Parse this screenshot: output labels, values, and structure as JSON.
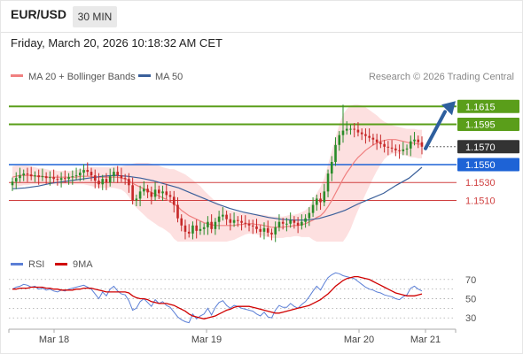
{
  "header": {
    "symbol": "EUR/USD",
    "timeframe": "30 MIN",
    "datetime": "Friday, March 20, 2026 10:18:32 AM CET"
  },
  "legend": {
    "ma20": "MA 20 + Bollinger Bands",
    "ma50": "MA 50",
    "credit": "Research © 2026 Trading Central",
    "rsi": "RSI",
    "rsi_ma": "9MA"
  },
  "colors": {
    "up": "#2a8c2a",
    "down": "#c62828",
    "ma20": "#f08080",
    "ma50": "#3a5f9a",
    "bollinger_fill": "#fde0e0",
    "resistance": "#5a9e1a",
    "current": "#333333",
    "support_blue": "#1e63d6",
    "support_red": "#d04040",
    "arrow": "#2e5f9e",
    "rsi": "#5b7fd6",
    "rsi_ma": "#d00000"
  },
  "chart_data": [
    {
      "type": "candlestick",
      "symbol": "EUR/USD",
      "interval": "30 MIN",
      "ylim": [
        1.1462,
        1.164
      ],
      "x_ticks": [
        "Mar 18",
        "Mar 19",
        "Mar 20",
        "Mar 21"
      ],
      "levels": [
        {
          "value": 1.1615,
          "label": "1.1615",
          "kind": "resistance"
        },
        {
          "value": 1.1595,
          "label": "1.1595",
          "kind": "resistance"
        },
        {
          "value": 1.157,
          "label": "1.1570",
          "kind": "current"
        },
        {
          "value": 1.155,
          "label": "1.1550",
          "kind": "pivot"
        },
        {
          "value": 1.153,
          "label": "1.1530",
          "kind": "support"
        },
        {
          "value": 1.151,
          "label": "1.1510",
          "kind": "support"
        }
      ],
      "close": [
        1.1531,
        1.1535,
        1.1538,
        1.154,
        1.1539,
        1.1537,
        1.1538,
        1.1536,
        1.1537,
        1.1535,
        1.1536,
        1.1534,
        1.1533,
        1.1535,
        1.1534,
        1.1536,
        1.1537,
        1.1538,
        1.1541,
        1.1544,
        1.1542,
        1.1538,
        1.1532,
        1.1528,
        1.1534,
        1.153,
        1.1537,
        1.1542,
        1.1538,
        1.1535,
        1.1534,
        1.1527,
        1.151,
        1.1512,
        1.152,
        1.1523,
        1.1519,
        1.1514,
        1.1522,
        1.1518,
        1.152,
        1.1516,
        1.1514,
        1.1505,
        1.149,
        1.1482,
        1.1475,
        1.1473,
        1.1482,
        1.1476,
        1.1478,
        1.148,
        1.1486,
        1.1478,
        1.1486,
        1.1492,
        1.1494,
        1.1489,
        1.1485,
        1.1488,
        1.1487,
        1.1485,
        1.1484,
        1.1482,
        1.1481,
        1.1478,
        1.1475,
        1.1479,
        1.1474,
        1.1472,
        1.148,
        1.1486,
        1.1484,
        1.1484,
        1.1488,
        1.1485,
        1.1482,
        1.1486,
        1.149,
        1.1496,
        1.1505,
        1.1512,
        1.1508,
        1.152,
        1.154,
        1.1553,
        1.1572,
        1.1583,
        1.1588,
        1.159,
        1.159,
        1.1589,
        1.1586,
        1.1584,
        1.1582,
        1.158,
        1.1578,
        1.1575,
        1.1573,
        1.157,
        1.1569,
        1.1568,
        1.1566,
        1.1565,
        1.1567,
        1.1568,
        1.1576,
        1.1578,
        1.1575,
        1.157
      ],
      "ma20": [
        1.1536,
        1.1537,
        1.1538,
        1.1538,
        1.1538,
        1.1538,
        1.1537,
        1.1537,
        1.1537,
        1.1536,
        1.1536,
        1.1536,
        1.1536,
        1.1536,
        1.1536,
        1.1536,
        1.1536,
        1.1536,
        1.1537,
        1.1537,
        1.1537,
        1.1537,
        1.1536,
        1.1536,
        1.1536,
        1.1536,
        1.1536,
        1.1536,
        1.1536,
        1.1535,
        1.1534,
        1.1532,
        1.1529,
        1.1527,
        1.1525,
        1.1523,
        1.1521,
        1.1519,
        1.1517,
        1.1515,
        1.1513,
        1.1511,
        1.1509,
        1.1506,
        1.1503,
        1.1499,
        1.1496,
        1.1493,
        1.1491,
        1.1489,
        1.1487,
        1.1485,
        1.1484,
        1.1483,
        1.1482,
        1.1482,
        1.1482,
        1.1482,
        1.1482,
        1.1482,
        1.1483,
        1.1483,
        1.1484,
        1.1484,
        1.1484,
        1.1483,
        1.1483,
        1.1482,
        1.1481,
        1.148,
        1.148,
        1.148,
        1.148,
        1.1481,
        1.1481,
        1.1482,
        1.1482,
        1.1483,
        1.1484,
        1.1486,
        1.1488,
        1.1491,
        1.1493,
        1.1497,
        1.1503,
        1.151,
        1.1518,
        1.1526,
        1.1534,
        1.1541,
        1.1547,
        1.1553,
        1.1558,
        1.1562,
        1.1566,
        1.1569,
        1.1572,
        1.1574,
        1.1576,
        1.1577,
        1.1578,
        1.1578,
        1.1578,
        1.1577,
        1.1576,
        1.1575,
        1.1574,
        1.1574,
        1.1573,
        1.1573
      ],
      "bb_upper": [
        1.1548,
        1.1549,
        1.1549,
        1.1549,
        1.1549,
        1.1548,
        1.1547,
        1.1546,
        1.1546,
        1.1545,
        1.1544,
        1.1544,
        1.1543,
        1.1543,
        1.1543,
        1.1543,
        1.1543,
        1.1544,
        1.1545,
        1.1546,
        1.1547,
        1.1547,
        1.1547,
        1.1547,
        1.1547,
        1.1547,
        1.1547,
        1.1548,
        1.1548,
        1.1548,
        1.1549,
        1.155,
        1.1551,
        1.1552,
        1.1552,
        1.1552,
        1.1552,
        1.1551,
        1.155,
        1.1549,
        1.1547,
        1.1546,
        1.1545,
        1.1545,
        1.1543,
        1.1541,
        1.1539,
        1.1536,
        1.1533,
        1.1529,
        1.1526,
        1.1521,
        1.1517,
        1.1513,
        1.1509,
        1.1506,
        1.1503,
        1.15,
        1.1499,
        1.1498,
        1.1497,
        1.1496,
        1.1496,
        1.1495,
        1.1495,
        1.1495,
        1.1494,
        1.1494,
        1.1493,
        1.1492,
        1.1492,
        1.1492,
        1.1492,
        1.1493,
        1.1494,
        1.1494,
        1.1495,
        1.1497,
        1.1499,
        1.1503,
        1.151,
        1.1518,
        1.1525,
        1.1535,
        1.155,
        1.1565,
        1.158,
        1.1595,
        1.1606,
        1.1612,
        1.1616,
        1.1617,
        1.1617,
        1.1616,
        1.1614,
        1.1611,
        1.1608,
        1.1605,
        1.1601,
        1.1598,
        1.1596,
        1.1594,
        1.1593,
        1.1592,
        1.1591,
        1.159,
        1.159,
        1.159,
        1.1589,
        1.1589
      ],
      "bb_lower": [
        1.1524,
        1.1525,
        1.1526,
        1.1527,
        1.1527,
        1.1528,
        1.1528,
        1.1528,
        1.1528,
        1.1528,
        1.1528,
        1.1528,
        1.1528,
        1.1528,
        1.1528,
        1.1528,
        1.1528,
        1.1528,
        1.1528,
        1.1528,
        1.1527,
        1.1526,
        1.1525,
        1.1524,
        1.1524,
        1.1524,
        1.1524,
        1.1524,
        1.1523,
        1.1522,
        1.1519,
        1.1514,
        1.1507,
        1.1502,
        1.1498,
        1.1494,
        1.149,
        1.1487,
        1.1484,
        1.1481,
        1.1479,
        1.1476,
        1.1473,
        1.1467,
        1.1463,
        1.1457,
        1.1453,
        1.145,
        1.1449,
        1.1449,
        1.1448,
        1.1449,
        1.1451,
        1.1453,
        1.1455,
        1.1458,
        1.1461,
        1.1464,
        1.1465,
        1.1466,
        1.1468,
        1.147,
        1.1472,
        1.1473,
        1.1473,
        1.1472,
        1.1471,
        1.147,
        1.1469,
        1.1468,
        1.1468,
        1.1468,
        1.1468,
        1.1469,
        1.1469,
        1.147,
        1.147,
        1.1469,
        1.1469,
        1.1469,
        1.1466,
        1.1464,
        1.1461,
        1.1458,
        1.1456,
        1.1455,
        1.1456,
        1.1457,
        1.1461,
        1.147,
        1.1478,
        1.1489,
        1.1499,
        1.1508,
        1.1517,
        1.1526,
        1.1535,
        1.1543,
        1.155,
        1.1556,
        1.156,
        1.1562,
        1.1563,
        1.1562,
        1.1561,
        1.156,
        1.1558,
        1.1558,
        1.1557,
        1.1557
      ],
      "ma50_start": 1.1523,
      "ma50": [
        1.1524,
        1.1526,
        1.1529,
        1.1531,
        1.1533,
        1.1535,
        1.1537,
        1.1538,
        1.1537,
        1.1535,
        1.1532,
        1.1528,
        1.1524,
        1.1518,
        1.1512,
        1.1506,
        1.1501,
        1.1497,
        1.1494,
        1.1491,
        1.1489,
        1.1488,
        1.1488,
        1.149,
        1.1494,
        1.1499,
        1.1506,
        1.1512,
        1.1518,
        1.1527,
        1.1535,
        1.1547
      ],
      "arrow_target": 1.1615
    },
    {
      "type": "line",
      "name": "RSI",
      "ylim": [
        20,
        80
      ],
      "y_ticks": [
        70,
        50,
        30
      ],
      "guide_lines": [
        70,
        60,
        50,
        40,
        30
      ],
      "series": [
        {
          "name": "RSI",
          "values": [
            60,
            62,
            63,
            65,
            64,
            62,
            63,
            60,
            61,
            59,
            60,
            58,
            57,
            59,
            58,
            60,
            61,
            62,
            63,
            64,
            62,
            60,
            55,
            50,
            57,
            53,
            60,
            63,
            58,
            55,
            54,
            48,
            38,
            40,
            47,
            50,
            46,
            42,
            49,
            45,
            47,
            43,
            41,
            36,
            31,
            28,
            26,
            25,
            34,
            29,
            32,
            34,
            40,
            33,
            41,
            46,
            48,
            43,
            40,
            43,
            42,
            40,
            39,
            38,
            37,
            34,
            32,
            36,
            31,
            30,
            38,
            43,
            41,
            41,
            45,
            42,
            40,
            44,
            47,
            52,
            58,
            63,
            59,
            66,
            72,
            75,
            77,
            76,
            74,
            73,
            72,
            71,
            68,
            65,
            62,
            60,
            59,
            57,
            56,
            54,
            53,
            52,
            50,
            49,
            52,
            54,
            61,
            63,
            60,
            58
          ]
        },
        {
          "name": "9MA",
          "values": [
            60,
            60,
            61,
            61,
            61,
            62,
            62,
            62,
            62,
            61,
            61,
            60,
            60,
            59,
            59,
            59,
            59,
            60,
            60,
            61,
            61,
            61,
            60,
            59,
            58,
            57,
            57,
            57,
            57,
            57,
            57,
            56,
            53,
            51,
            50,
            50,
            49,
            47,
            46,
            45,
            45,
            45,
            44,
            43,
            41,
            39,
            37,
            34,
            32,
            31,
            30,
            29,
            30,
            31,
            32,
            34,
            36,
            38,
            39,
            41,
            42,
            42,
            42,
            42,
            41,
            40,
            39,
            38,
            37,
            36,
            35,
            35,
            36,
            37,
            38,
            39,
            40,
            41,
            42,
            43,
            45,
            47,
            49,
            52,
            55,
            59,
            63,
            66,
            69,
            71,
            72,
            73,
            73,
            72,
            71,
            70,
            68,
            66,
            64,
            62,
            60,
            58,
            56,
            55,
            54,
            53,
            53,
            53,
            54,
            55
          ]
        }
      ]
    }
  ]
}
